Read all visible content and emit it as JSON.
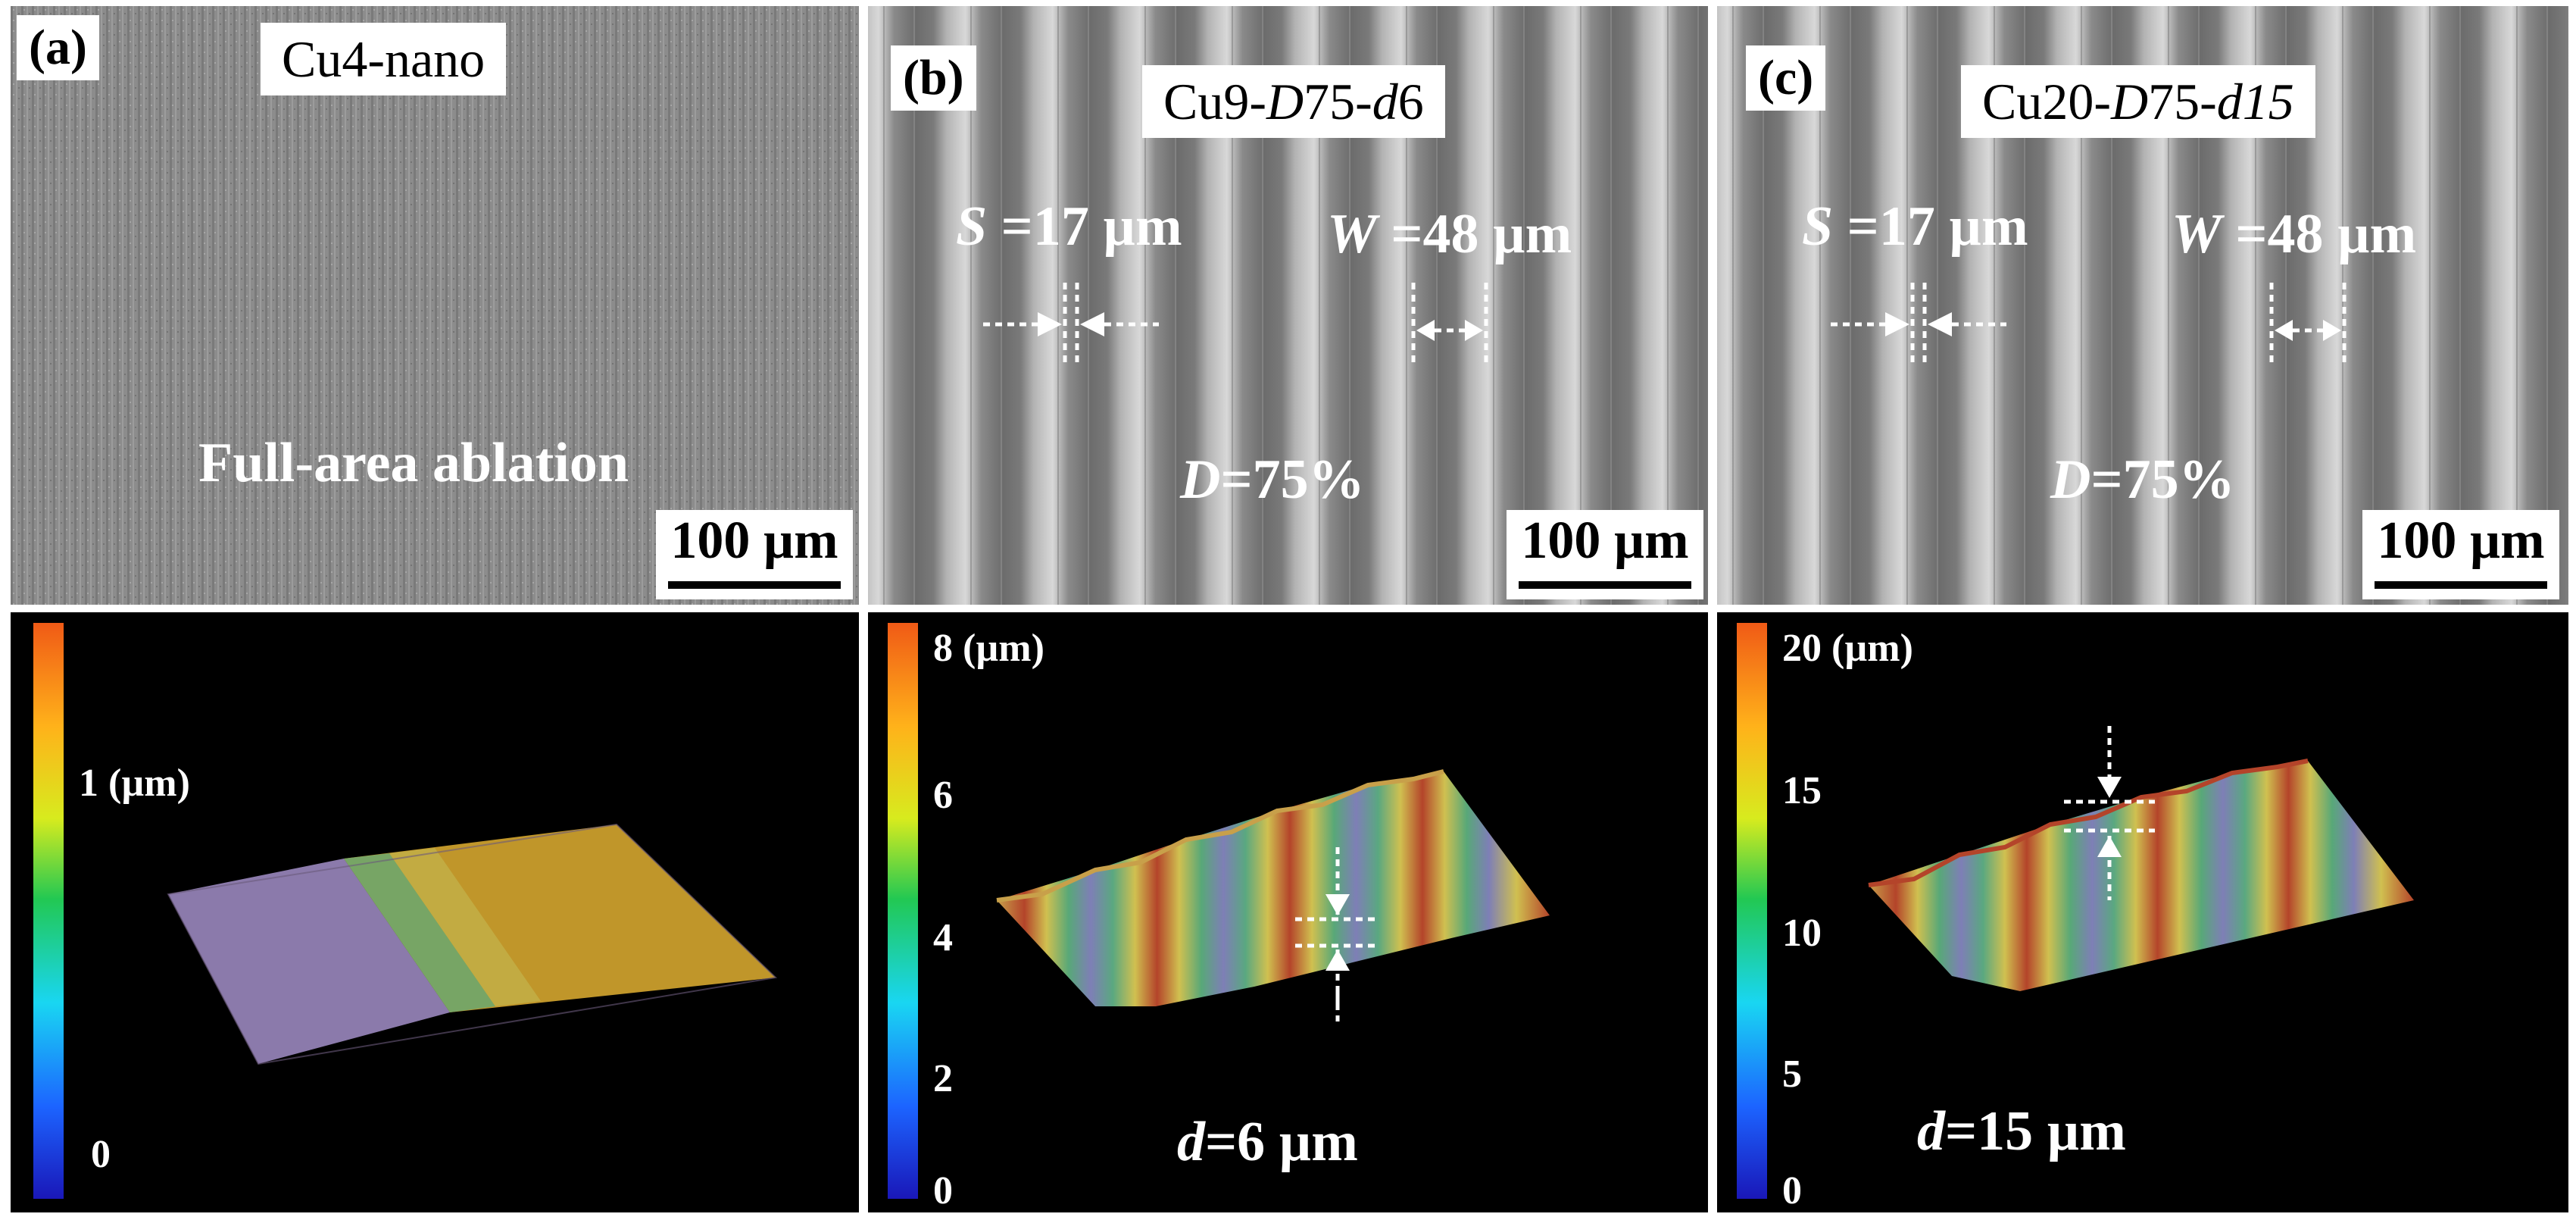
{
  "figure": {
    "panels": [
      {
        "label": "(a)",
        "sample": "Cu4-nano",
        "annotation": "Full-area ablation",
        "scale_bar": "100 µm"
      },
      {
        "label": "(b)",
        "sample_prefix": "Cu9-",
        "sample_D": "D",
        "sample_mid": "75-",
        "sample_d": "d",
        "sample_suffix": "6",
        "S_sym": "S",
        "S_val": " =17 µm",
        "W_sym": "W",
        "W_val": " =48 µm",
        "D_sym": "D",
        "D_val": "=75%",
        "scale_bar": "100 µm"
      },
      {
        "label": "(c)",
        "sample_prefix": "Cu20-",
        "sample_D": "D",
        "sample_mid": "75-",
        "sample_d": "d15",
        "S_sym": "S",
        "S_val": " =17 µm",
        "W_sym": "W",
        "W_val": " =48 µm",
        "D_sym": "D",
        "D_val": "=75%",
        "scale_bar": "100 µm"
      }
    ],
    "colorbars": [
      {
        "ticks": [
          "1 (µm)",
          "0"
        ]
      },
      {
        "ticks": [
          "8 (µm)",
          "6",
          "4",
          "2",
          "0"
        ],
        "d_sym": "d",
        "d_val": "=6 µm"
      },
      {
        "ticks": [
          "20 (µm)",
          "15",
          "10",
          "5",
          "0"
        ],
        "d_sym": "d",
        "d_val": "=15 µm"
      }
    ]
  },
  "colors": {
    "sem_base": "#8a8a8a",
    "colormap": [
      "#1a17b8",
      "#1c64ff",
      "#19d6f2",
      "#22c853",
      "#d7eb1e",
      "#ffb21a",
      "#f05a16"
    ]
  }
}
